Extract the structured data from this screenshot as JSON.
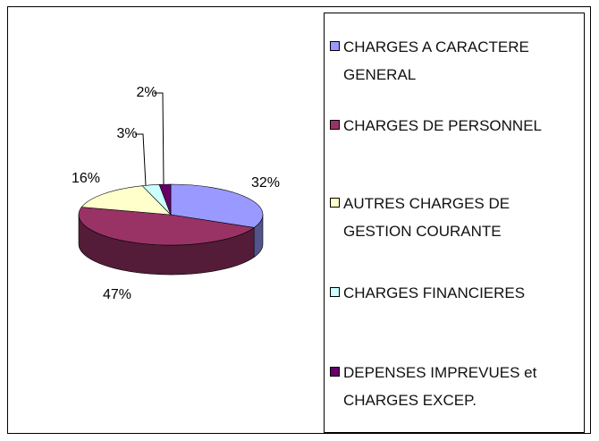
{
  "chart_data": {
    "type": "pie",
    "categories": [
      "CHARGES A CARACTERE GENERAL",
      "CHARGES DE PERSONNEL",
      "AUTRES CHARGES DE GESTION COURANTE",
      "CHARGES FINANCIERES",
      "DEPENSES IMPREVUES et CHARGES EXCEP."
    ],
    "values": [
      32,
      47,
      16,
      3,
      2
    ],
    "value_labels": [
      "32%",
      "47%",
      "16%",
      "3%",
      "2%"
    ],
    "colors": [
      "#9999ff",
      "#993366",
      "#ffffcc",
      "#ccffff",
      "#660066"
    ],
    "legend": "right"
  }
}
